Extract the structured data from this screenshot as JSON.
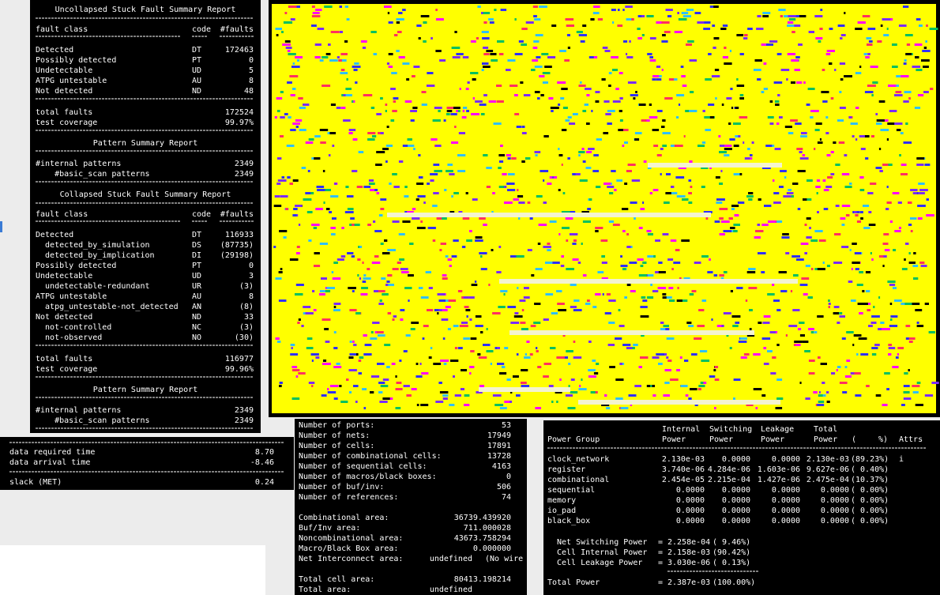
{
  "faults": {
    "uncollapsed_title": "Uncollapsed Stuck Fault Summary Report",
    "header": [
      "fault class",
      "code",
      "#faults"
    ],
    "uncollapsed_rows": [
      [
        "Detected",
        "DT",
        "172463"
      ],
      [
        "Possibly detected",
        "PT",
        "0"
      ],
      [
        "Undetectable",
        "UD",
        "5"
      ],
      [
        "ATPG untestable",
        "AU",
        "8"
      ],
      [
        "Not detected",
        "ND",
        "48"
      ]
    ],
    "uncollapsed_totals": [
      [
        "total faults",
        "172524"
      ],
      [
        "test coverage",
        "99.97%"
      ]
    ],
    "pattern_title": "Pattern Summary Report",
    "uncollapsed_patterns": [
      [
        "#internal patterns",
        "2349"
      ],
      [
        "    #basic_scan patterns",
        "2349"
      ]
    ],
    "collapsed_title": "Collapsed Stuck Fault Summary Report",
    "collapsed_rows": [
      [
        "Detected",
        "DT",
        "116933"
      ],
      [
        "  detected_by_simulation",
        "DS",
        "(87735)"
      ],
      [
        "  detected_by_implication",
        "DI",
        "(29198)"
      ],
      [
        "Possibly detected",
        "PT",
        "0"
      ],
      [
        "Undetectable",
        "UD",
        "3"
      ],
      [
        "  undetectable-redundant",
        "UR",
        "(3)"
      ],
      [
        "ATPG untestable",
        "AU",
        "8"
      ],
      [
        "  atpg_untestable-not_detected",
        "AN",
        "(8)"
      ],
      [
        "Not detected",
        "ND",
        "33"
      ],
      [
        "  not-controlled",
        "NC",
        "(3)"
      ],
      [
        "  not-observed",
        "NO",
        "(30)"
      ]
    ],
    "collapsed_totals": [
      [
        "total faults",
        "116977"
      ],
      [
        "test coverage",
        "99.96%"
      ]
    ],
    "collapsed_patterns": [
      [
        "#internal patterns",
        "2349"
      ],
      [
        "    #basic_scan patterns",
        "2349"
      ]
    ]
  },
  "timing": {
    "rows": [
      [
        "data required time",
        "8.70"
      ],
      [
        "data arrival time",
        "-8.46"
      ]
    ],
    "slack": [
      "slack (MET)",
      "0.24"
    ]
  },
  "area": {
    "counts": [
      [
        "Number of ports:",
        "53"
      ],
      [
        "Number of nets:",
        "17949"
      ],
      [
        "Number of cells:",
        "17891"
      ],
      [
        "Number of combinational cells:",
        "13728"
      ],
      [
        "Number of sequential cells:",
        "4163"
      ],
      [
        "Number of macros/black boxes:",
        "0"
      ],
      [
        "Number of buf/inv:",
        "506"
      ],
      [
        "Number of references:",
        "74"
      ]
    ],
    "areas": [
      [
        "Combinational area:",
        "36739.439920"
      ],
      [
        "Buf/Inv area:",
        "711.000028"
      ],
      [
        "Noncombinational area:",
        "43673.758294"
      ],
      [
        "Macro/Black Box area:",
        "0.000000"
      ],
      [
        "Net Interconnect area:",
        "undefined",
        "(No wire"
      ]
    ],
    "totals": [
      [
        "Total cell area:",
        "80413.198214"
      ],
      [
        "Total area:",
        "undefined"
      ]
    ]
  },
  "power": {
    "header_top": [
      "Internal",
      "Switching",
      "Leakage",
      "Total"
    ],
    "header": [
      "Power Group",
      "Power",
      "Power",
      "Power",
      "Power",
      "(",
      "%)",
      "Attrs"
    ],
    "rows": [
      [
        "clock_network",
        "2.130e-03",
        "0.0000",
        "0.0000",
        "2.130e-03",
        "(89.23%)",
        "i"
      ],
      [
        "register",
        "3.740e-06",
        "4.284e-06",
        "1.603e-06",
        "9.627e-06",
        "( 0.40%)"
      ],
      [
        "combinational",
        "2.454e-05",
        "2.215e-04",
        "1.427e-06",
        "2.475e-04",
        "(10.37%)"
      ],
      [
        "sequential",
        "0.0000",
        "0.0000",
        "0.0000",
        "0.0000",
        "( 0.00%)"
      ],
      [
        "memory",
        "0.0000",
        "0.0000",
        "0.0000",
        "0.0000",
        "( 0.00%)"
      ],
      [
        "io_pad",
        "0.0000",
        "0.0000",
        "0.0000",
        "0.0000",
        "( 0.00%)"
      ],
      [
        "black_box",
        "0.0000",
        "0.0000",
        "0.0000",
        "0.0000",
        "( 0.00%)"
      ]
    ],
    "summary": [
      [
        "Net Switching Power",
        "=",
        "2.258e-04",
        "( 9.46%)"
      ],
      [
        "Cell Internal Power",
        "=",
        "2.158e-03",
        "(90.42%)"
      ],
      [
        "Cell Leakage Power",
        "=",
        "3.030e-06",
        "( 0.13%)"
      ]
    ],
    "total": [
      "Total Power",
      "=",
      "2.387e-03",
      "(100.00%)"
    ]
  }
}
